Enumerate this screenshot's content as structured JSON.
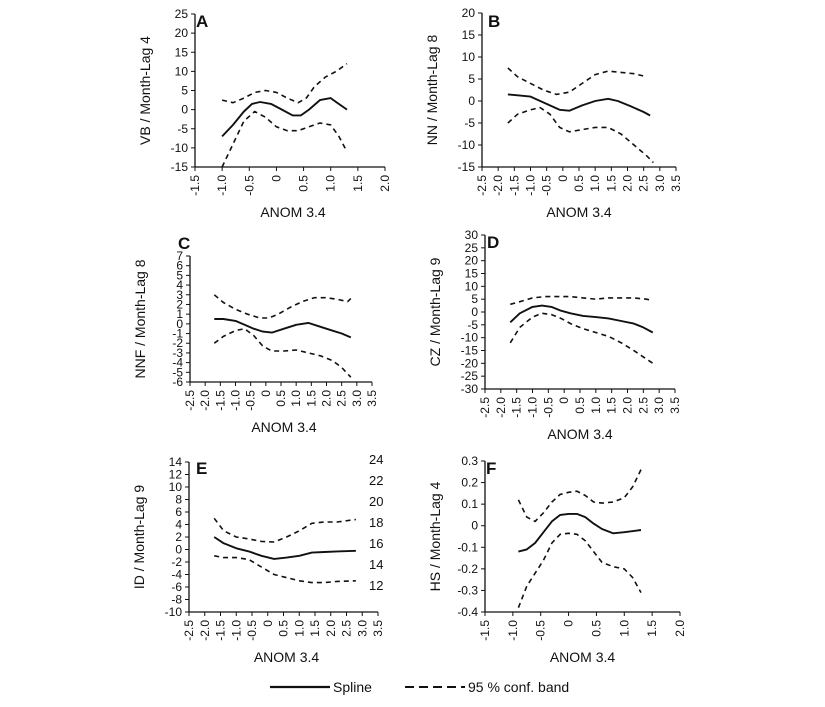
{
  "legend": {
    "spline_label": "Spline",
    "band_label": "95 % conf. band"
  },
  "chart_data": [
    {
      "panel": "A",
      "type": "line",
      "xlabel": "ANOM 3.4",
      "ylabel": "VB / Month-Lag 4",
      "xlim": [
        -1.5,
        2.0
      ],
      "ylim": [
        -15,
        25
      ],
      "xticks": [
        "-1.5",
        "-1.0",
        "-0.5",
        "0",
        "0.5",
        "1.0",
        "1.5",
        "2.0"
      ],
      "yticks": [
        "-15",
        "-10",
        "-5",
        "0",
        "5",
        "10",
        "15",
        "20",
        "25"
      ],
      "series": [
        {
          "role": "spline",
          "x": [
            -1.0,
            -0.8,
            -0.6,
            -0.45,
            -0.3,
            -0.1,
            0.1,
            0.3,
            0.45,
            0.6,
            0.8,
            1.0,
            1.1,
            1.3
          ],
          "y": [
            -7,
            -4,
            -0.5,
            1.5,
            2,
            1.5,
            0,
            -1.5,
            -1.5,
            0,
            2.5,
            3,
            2,
            0
          ]
        },
        {
          "role": "upper",
          "x": [
            -1.0,
            -0.8,
            -0.6,
            -0.4,
            -0.2,
            0,
            0.2,
            0.4,
            0.55,
            0.7,
            0.9,
            1.1,
            1.3
          ],
          "y": [
            2.5,
            1.8,
            3,
            4.5,
            5,
            4.5,
            3,
            1.8,
            3,
            6,
            8.5,
            10,
            12
          ]
        },
        {
          "role": "lower",
          "x": [
            -1.0,
            -0.8,
            -0.6,
            -0.4,
            -0.2,
            0,
            0.2,
            0.4,
            0.6,
            0.8,
            1.0,
            1.15,
            1.3
          ],
          "y": [
            -15,
            -9,
            -3,
            -0.5,
            -2,
            -4.5,
            -5.5,
            -5.5,
            -4.5,
            -3.5,
            -4,
            -7,
            -11
          ]
        }
      ]
    },
    {
      "panel": "B",
      "type": "line",
      "xlabel": "ANOM 3.4",
      "ylabel": "NN / Month-Lag 8",
      "xlim": [
        -2.5,
        3.5
      ],
      "ylim": [
        -15,
        20
      ],
      "xticks": [
        "-2.5",
        "-2.0",
        "-1.5",
        "-1.0",
        "-0.5",
        "0",
        "0.5",
        "1.0",
        "1.5",
        "2.0",
        "2.5",
        "3.0",
        "3.5"
      ],
      "yticks": [
        "-15",
        "-10",
        "-5",
        "0",
        "5",
        "10",
        "15",
        "20"
      ],
      "series": [
        {
          "role": "spline",
          "x": [
            -1.7,
            -1.4,
            -1.0,
            -0.7,
            -0.4,
            -0.1,
            0.2,
            0.6,
            1.0,
            1.4,
            1.7,
            2.1,
            2.5,
            2.7
          ],
          "y": [
            1.5,
            1.3,
            1.0,
            0,
            -1,
            -2,
            -2.2,
            -1.0,
            0,
            0.5,
            0,
            -1.2,
            -2.5,
            -3.3
          ]
        },
        {
          "role": "upper",
          "x": [
            -1.7,
            -1.4,
            -1.0,
            -0.6,
            -0.2,
            0.2,
            0.6,
            1.0,
            1.4,
            1.8,
            2.2,
            2.6
          ],
          "y": [
            7.5,
            5.5,
            4,
            2.5,
            1.5,
            2,
            4,
            6,
            6.8,
            6.5,
            6.2,
            5.5
          ]
        },
        {
          "role": "lower",
          "x": [
            -1.7,
            -1.4,
            -1.0,
            -0.7,
            -0.4,
            -0.1,
            0.2,
            0.6,
            1.0,
            1.4,
            1.8,
            2.2,
            2.6,
            2.8
          ],
          "y": [
            -5,
            -3,
            -2,
            -1.5,
            -3,
            -6,
            -7,
            -6.5,
            -6,
            -6,
            -7.5,
            -10,
            -12.5,
            -14
          ]
        }
      ]
    },
    {
      "panel": "C",
      "type": "line",
      "xlabel": "ANOM 3.4",
      "ylabel": "NNF / Month-Lag 8",
      "xlim": [
        -2.5,
        3.5
      ],
      "ylim": [
        -6,
        7
      ],
      "xticks": [
        "-2.5",
        "-2.0",
        "-1.5",
        "-1.0",
        "-0.5",
        "0",
        "0.5",
        "1.0",
        "1.5",
        "2.0",
        "2.5",
        "3.0",
        "3.5"
      ],
      "yticks": [
        "-6",
        "-5",
        "-4",
        "-3",
        "-2",
        "-1",
        "0",
        "1",
        "2",
        "3",
        "4",
        "5",
        "6",
        "7"
      ],
      "series": [
        {
          "role": "spline",
          "x": [
            -1.7,
            -1.4,
            -1.0,
            -0.7,
            -0.4,
            -0.1,
            0.2,
            0.6,
            1.0,
            1.4,
            1.7,
            2.1,
            2.5,
            2.8
          ],
          "y": [
            0.5,
            0.5,
            0.3,
            -0.1,
            -0.5,
            -0.8,
            -0.9,
            -0.5,
            -0.1,
            0.1,
            -0.2,
            -0.6,
            -1.0,
            -1.4
          ]
        },
        {
          "role": "upper",
          "x": [
            -1.7,
            -1.4,
            -1.0,
            -0.6,
            -0.2,
            0.1,
            0.4,
            0.8,
            1.2,
            1.6,
            2.0,
            2.4,
            2.7,
            2.8
          ],
          "y": [
            3,
            2.2,
            1.5,
            1,
            0.6,
            0.6,
            1,
            1.7,
            2.3,
            2.7,
            2.7,
            2.5,
            2.3,
            2.6
          ]
        },
        {
          "role": "lower",
          "x": [
            -1.7,
            -1.4,
            -1.0,
            -0.7,
            -0.4,
            -0.1,
            0.2,
            0.6,
            1.0,
            1.4,
            1.8,
            2.2,
            2.5,
            2.8
          ],
          "y": [
            -2,
            -1.3,
            -0.7,
            -0.5,
            -1.2,
            -2.3,
            -2.8,
            -2.8,
            -2.7,
            -3,
            -3.3,
            -3.8,
            -4.5,
            -5.5
          ]
        }
      ]
    },
    {
      "panel": "D",
      "type": "line",
      "xlabel": "ANOM 3.4",
      "ylabel": "CZ / Month-Lag 9",
      "xlim": [
        -2.5,
        3.5
      ],
      "ylim": [
        -30,
        30
      ],
      "xticks": [
        "-2.5",
        "-2.0",
        "-1.5",
        "-1.0",
        "-0.5",
        "0",
        "0.5",
        "1.0",
        "1.5",
        "2.0",
        "2.5",
        "3.0",
        "3.5"
      ],
      "yticks": [
        "-30",
        "-25",
        "-20",
        "-15",
        "-10",
        "-5",
        "0",
        "5",
        "10",
        "15",
        "20",
        "25",
        "30"
      ],
      "series": [
        {
          "role": "spline",
          "x": [
            -1.7,
            -1.4,
            -1.0,
            -0.7,
            -0.4,
            -0.1,
            0.2,
            0.6,
            1.0,
            1.4,
            1.8,
            2.2,
            2.5,
            2.8
          ],
          "y": [
            -4,
            -0.5,
            2,
            2.5,
            2,
            0.5,
            -0.5,
            -1.5,
            -2,
            -2.5,
            -3.5,
            -4.5,
            -6,
            -8
          ]
        },
        {
          "role": "upper",
          "x": [
            -1.7,
            -1.4,
            -1.0,
            -0.6,
            -0.2,
            0.2,
            0.6,
            1.0,
            1.4,
            1.8,
            2.2,
            2.6,
            2.8
          ],
          "y": [
            3,
            4,
            5.5,
            6,
            6,
            6,
            5.5,
            5,
            5.5,
            5.5,
            5.5,
            5,
            4.5
          ]
        },
        {
          "role": "lower",
          "x": [
            -1.7,
            -1.4,
            -1.0,
            -0.7,
            -0.4,
            -0.1,
            0.2,
            0.6,
            1.0,
            1.4,
            1.8,
            2.2,
            2.5,
            2.8
          ],
          "y": [
            -12,
            -6,
            -2,
            -0.5,
            -1,
            -2.5,
            -4.5,
            -6.5,
            -8,
            -9.5,
            -12,
            -15,
            -17.5,
            -20
          ]
        }
      ]
    },
    {
      "panel": "E",
      "type": "line",
      "xlabel": "ANOM 3.4",
      "ylabel": "ID / Month-Lag 9",
      "xlim": [
        -2.5,
        3.5
      ],
      "ylim": [
        -10,
        14
      ],
      "xticks": [
        "-2.5",
        "-2.0",
        "-1.5",
        "-1.0",
        "-0.5",
        "0",
        "0.5",
        "1.0",
        "1.5",
        "2.0",
        "2.5",
        "3.0",
        "3.5"
      ],
      "yticks": [
        "-10",
        "-8",
        "-6",
        "-4",
        "-2",
        "0",
        "2",
        "4",
        "6",
        "8",
        "10",
        "12",
        "14"
      ],
      "right_yticks": [
        "12",
        "14",
        "16",
        "18",
        "20",
        "22",
        "24"
      ],
      "series": [
        {
          "role": "spline",
          "x": [
            -1.7,
            -1.4,
            -1.0,
            -0.6,
            -0.2,
            0.2,
            0.6,
            1.0,
            1.4,
            1.8,
            2.2,
            2.8
          ],
          "y": [
            2,
            1,
            0.2,
            -0.3,
            -1,
            -1.5,
            -1.3,
            -1,
            -0.5,
            -0.4,
            -0.3,
            -0.2
          ]
        },
        {
          "role": "upper",
          "x": [
            -1.7,
            -1.4,
            -1.0,
            -0.6,
            -0.2,
            0.2,
            0.6,
            1.0,
            1.4,
            1.8,
            2.2,
            2.8
          ],
          "y": [
            5,
            3,
            2,
            1.7,
            1.3,
            1.2,
            2,
            3,
            4.2,
            4.4,
            4.4,
            4.8
          ]
        },
        {
          "role": "lower",
          "x": [
            -1.7,
            -1.4,
            -1.0,
            -0.6,
            -0.2,
            0.2,
            0.6,
            1.0,
            1.4,
            1.8,
            2.2,
            2.8
          ],
          "y": [
            -1,
            -1.3,
            -1.3,
            -1.6,
            -2.8,
            -4,
            -4.5,
            -5,
            -5.3,
            -5.3,
            -5.1,
            -5.0
          ]
        }
      ]
    },
    {
      "panel": "F",
      "type": "line",
      "xlabel": "ANOM 3.4",
      "ylabel": "HS / Month-Lag 4",
      "xlim": [
        -1.5,
        2.0
      ],
      "ylim": [
        -0.4,
        0.3
      ],
      "xticks": [
        "-1.5",
        "-1.0",
        "-0.5",
        "0",
        "0.5",
        "1.0",
        "1.5",
        "2.0"
      ],
      "yticks": [
        "-0.4",
        "-0.3",
        "-0.2",
        "-0.1",
        "0",
        "0.1",
        "0.2",
        "0.3"
      ],
      "series": [
        {
          "role": "spline",
          "x": [
            -0.9,
            -0.75,
            -0.6,
            -0.45,
            -0.3,
            -0.15,
            0,
            0.15,
            0.3,
            0.45,
            0.6,
            0.8,
            1.0,
            1.3
          ],
          "y": [
            -0.12,
            -0.11,
            -0.08,
            -0.03,
            0.02,
            0.05,
            0.055,
            0.055,
            0.04,
            0.01,
            -0.015,
            -0.035,
            -0.03,
            -0.02
          ]
        },
        {
          "role": "upper",
          "x": [
            -0.9,
            -0.75,
            -0.6,
            -0.45,
            -0.3,
            -0.15,
            0,
            0.15,
            0.3,
            0.45,
            0.6,
            0.8,
            1.0,
            1.15,
            1.3
          ],
          "y": [
            0.12,
            0.04,
            0.02,
            0.06,
            0.11,
            0.145,
            0.155,
            0.16,
            0.14,
            0.11,
            0.105,
            0.11,
            0.13,
            0.18,
            0.26
          ]
        },
        {
          "role": "lower",
          "x": [
            -0.9,
            -0.75,
            -0.6,
            -0.45,
            -0.3,
            -0.15,
            0,
            0.15,
            0.3,
            0.45,
            0.6,
            0.8,
            1.0,
            1.15,
            1.3
          ],
          "y": [
            -0.38,
            -0.28,
            -0.22,
            -0.16,
            -0.08,
            -0.04,
            -0.035,
            -0.04,
            -0.07,
            -0.12,
            -0.17,
            -0.19,
            -0.2,
            -0.24,
            -0.31
          ]
        }
      ]
    }
  ]
}
